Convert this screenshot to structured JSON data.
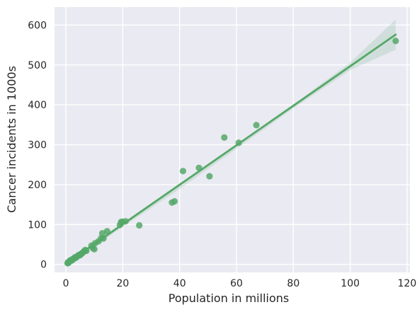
{
  "chart_data": {
    "type": "scatter",
    "xlabel": "Population in millions",
    "ylabel": "Cancer incidents in 1000s",
    "xlim": [
      -4,
      121
    ],
    "ylim": [
      -20,
      645
    ],
    "xticks": [
      0,
      20,
      40,
      60,
      80,
      100,
      120
    ],
    "yticks": [
      0,
      100,
      200,
      300,
      400,
      500,
      600
    ],
    "grid": true,
    "legend": "none",
    "colors": {
      "point": "#55a868",
      "line": "#55a868",
      "band": "#55a868",
      "background": "#eaeaf2",
      "grid": "#ffffff"
    },
    "series": [
      {
        "points": [
          [
            0.6,
            3
          ],
          [
            0.7,
            5
          ],
          [
            0.9,
            4
          ],
          [
            1.0,
            6
          ],
          [
            1.3,
            8
          ],
          [
            1.5,
            10
          ],
          [
            1.8,
            9
          ],
          [
            2.0,
            12
          ],
          [
            2.3,
            11
          ],
          [
            2.6,
            14
          ],
          [
            3.0,
            15
          ],
          [
            3.2,
            18
          ],
          [
            3.6,
            17
          ],
          [
            4.0,
            20
          ],
          [
            4.3,
            22
          ],
          [
            4.6,
            24
          ],
          [
            5.0,
            23
          ],
          [
            5.3,
            26
          ],
          [
            5.7,
            28
          ],
          [
            6.0,
            30
          ],
          [
            6.4,
            33
          ],
          [
            6.8,
            36
          ],
          [
            7.2,
            34
          ],
          [
            9.0,
            47
          ],
          [
            9.5,
            41
          ],
          [
            10.0,
            38
          ],
          [
            10.3,
            53
          ],
          [
            11.5,
            58
          ],
          [
            12.4,
            66
          ],
          [
            12.8,
            78
          ],
          [
            13.2,
            65
          ],
          [
            14.5,
            83
          ],
          [
            19.0,
            99
          ],
          [
            19.4,
            106
          ],
          [
            19.8,
            107
          ],
          [
            21.0,
            108
          ],
          [
            25.8,
            98
          ],
          [
            37.3,
            155
          ],
          [
            38.2,
            158
          ],
          [
            41.2,
            234
          ],
          [
            46.8,
            242
          ],
          [
            50.5,
            221
          ],
          [
            55.7,
            318
          ],
          [
            60.8,
            305
          ],
          [
            67.0,
            349
          ],
          [
            116.0,
            560
          ]
        ],
        "fit": {
          "x": [
            0.5,
            116.0
          ],
          "y": [
            4,
            576
          ]
        },
        "band": {
          "x": [
            0.5,
            20,
            40,
            60,
            80,
            100,
            116.0
          ],
          "upper": [
            9,
            104,
            201,
            300,
            401,
            506,
            614
          ],
          "lower": [
            -1,
            94,
            189,
            290,
            391,
            487,
            538
          ]
        }
      }
    ]
  }
}
